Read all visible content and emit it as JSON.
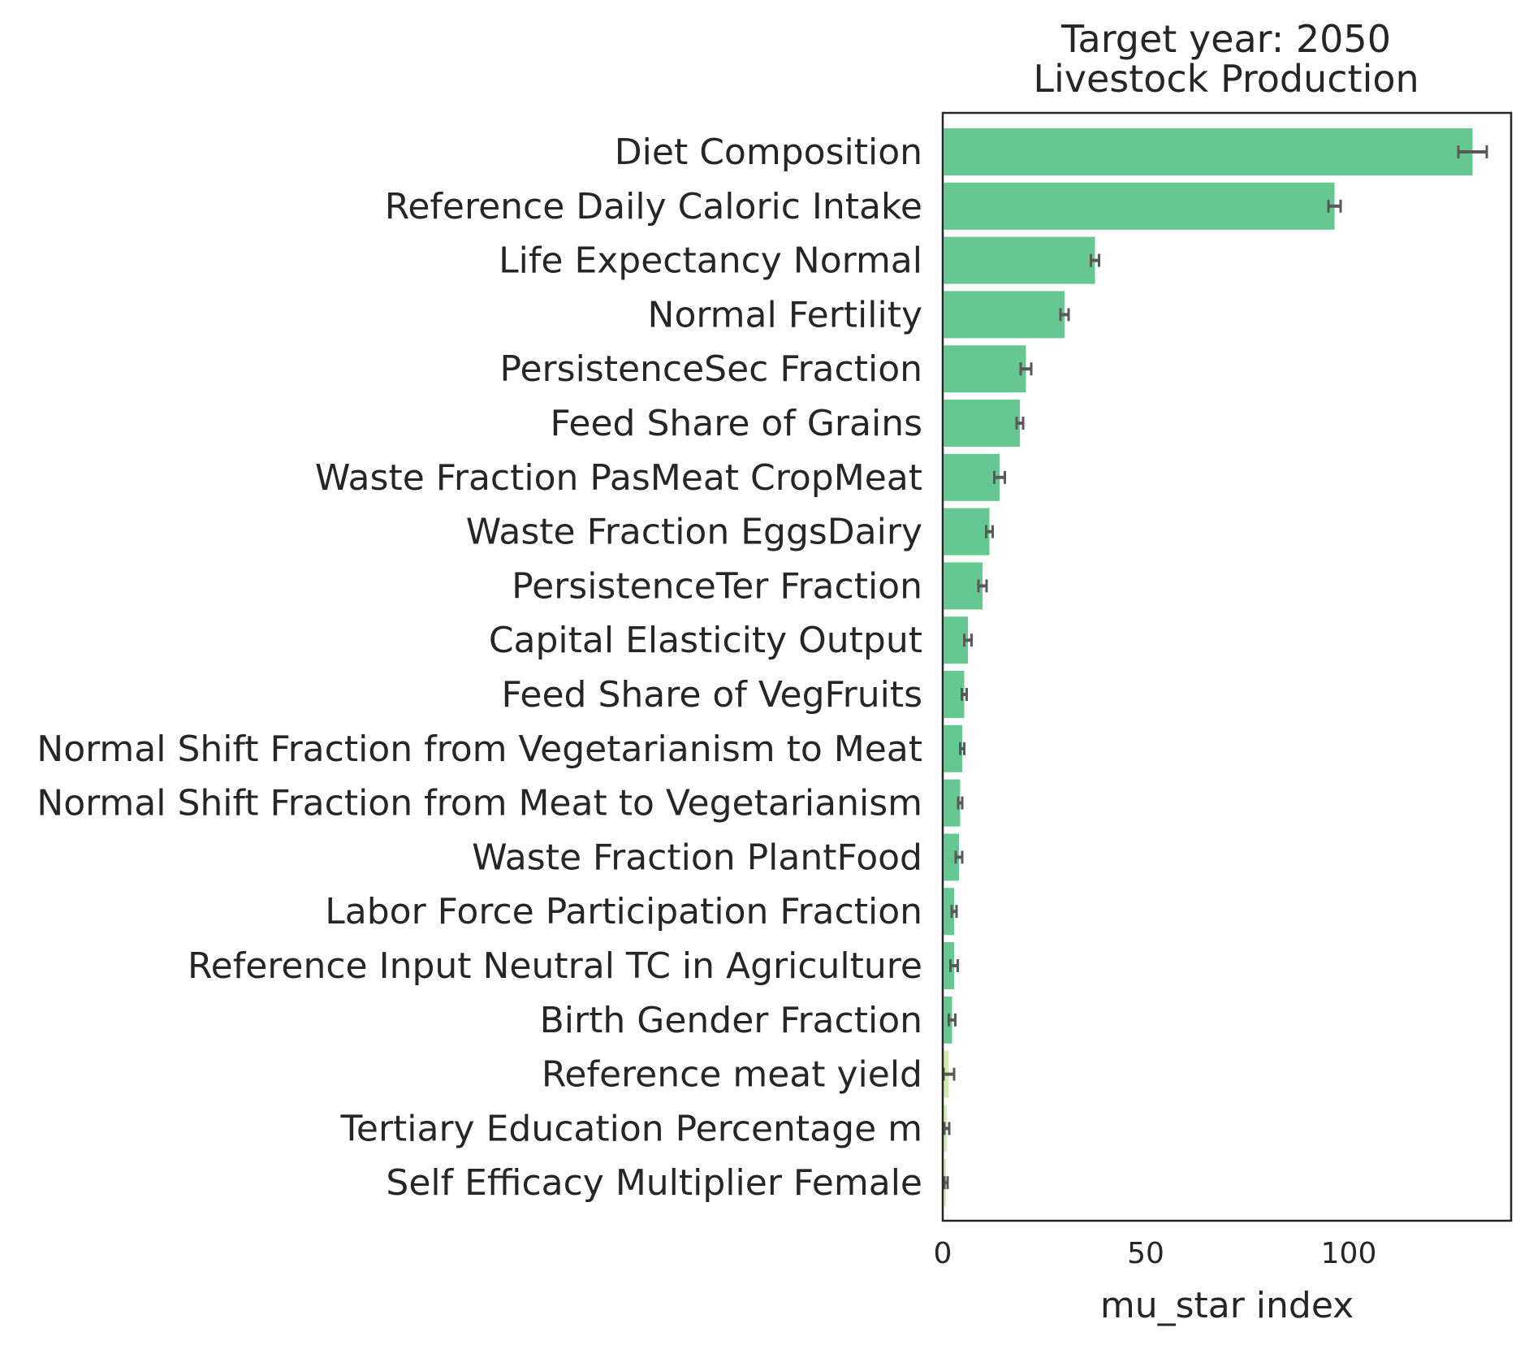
{
  "chart_data": {
    "type": "bar",
    "orientation": "horizontal",
    "title": "Target year: 2050",
    "subtitle": "Livestock Production",
    "xlabel": "mu_star index",
    "ylabel": "",
    "xlim": [
      0,
      140
    ],
    "xticks": [
      0,
      50,
      100
    ],
    "xtick_labels": [
      "0",
      "50",
      "100"
    ],
    "grid": false,
    "legend": "none",
    "colors": {
      "main": "#66c891",
      "low": "#d2ebae",
      "error": "#595959",
      "axis": "#262626"
    },
    "categories": [
      "Diet Composition",
      "Reference Daily Caloric Intake",
      "Life Expectancy Normal",
      "Normal Fertility",
      "PersistenceSec Fraction",
      "Feed Share of Grains",
      "Waste Fraction PasMeat CropMeat",
      "Waste Fraction EggsDairy",
      "PersistenceTer Fraction",
      "Capital Elasticity Output",
      "Feed Share of VegFruits",
      "Normal Shift Fraction from Vegetarianism to Meat",
      "Normal Shift Fraction from Meat to Vegetarianism",
      "Waste Fraction PlantFood",
      "Labor Force Participation Fraction",
      "Reference Input Neutral TC in Agriculture",
      "Birth Gender Fraction",
      "Reference meat yield",
      "Tertiary Education Percentage m",
      "Self Efficacy Multiplier Female"
    ],
    "values": [
      130.5,
      96.5,
      37.5,
      30.0,
      20.5,
      19.0,
      14.0,
      11.5,
      9.8,
      6.2,
      5.3,
      4.8,
      4.3,
      4.0,
      2.8,
      2.8,
      2.3,
      1.5,
      1.0,
      0.8
    ],
    "errors": [
      3.5,
      1.5,
      1.0,
      1.0,
      1.3,
      0.8,
      1.3,
      0.8,
      1.0,
      0.9,
      0.6,
      0.5,
      0.5,
      0.8,
      0.6,
      0.9,
      0.8,
      1.3,
      0.6,
      0.4
    ],
    "bar_color_group": [
      "main",
      "main",
      "main",
      "main",
      "main",
      "main",
      "main",
      "main",
      "main",
      "main",
      "main",
      "main",
      "main",
      "main",
      "main",
      "main",
      "main",
      "low",
      "low",
      "low"
    ]
  }
}
